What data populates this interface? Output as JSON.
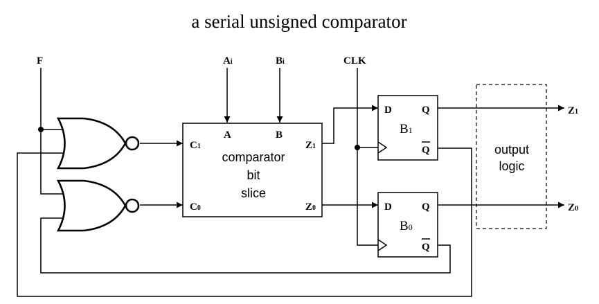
{
  "title": "a serial unsigned comparator",
  "signals": {
    "f": "F",
    "a": "A",
    "a_sub": "i",
    "b": "B",
    "b_sub": "i",
    "clk": "CLK",
    "z1": "Z",
    "z1_sub": "1",
    "z0": "Z",
    "z0_sub": "0"
  },
  "slice": {
    "line1": "comparator",
    "line2": "bit",
    "line3": "slice",
    "pins": {
      "a": "A",
      "b": "B",
      "c1": "C",
      "c1_sub": "1",
      "c0": "C",
      "c0_sub": "0",
      "z1": "Z",
      "z1_sub": "1",
      "z0": "Z",
      "z0_sub": "0"
    }
  },
  "ff1": {
    "name": "B",
    "sub": "1",
    "d": "D",
    "q": "Q",
    "qbar": "Q"
  },
  "ff0": {
    "name": "B",
    "sub": "0",
    "d": "D",
    "q": "Q",
    "qbar": "Q"
  },
  "output_logic": {
    "line1": "output",
    "line2": "logic"
  }
}
